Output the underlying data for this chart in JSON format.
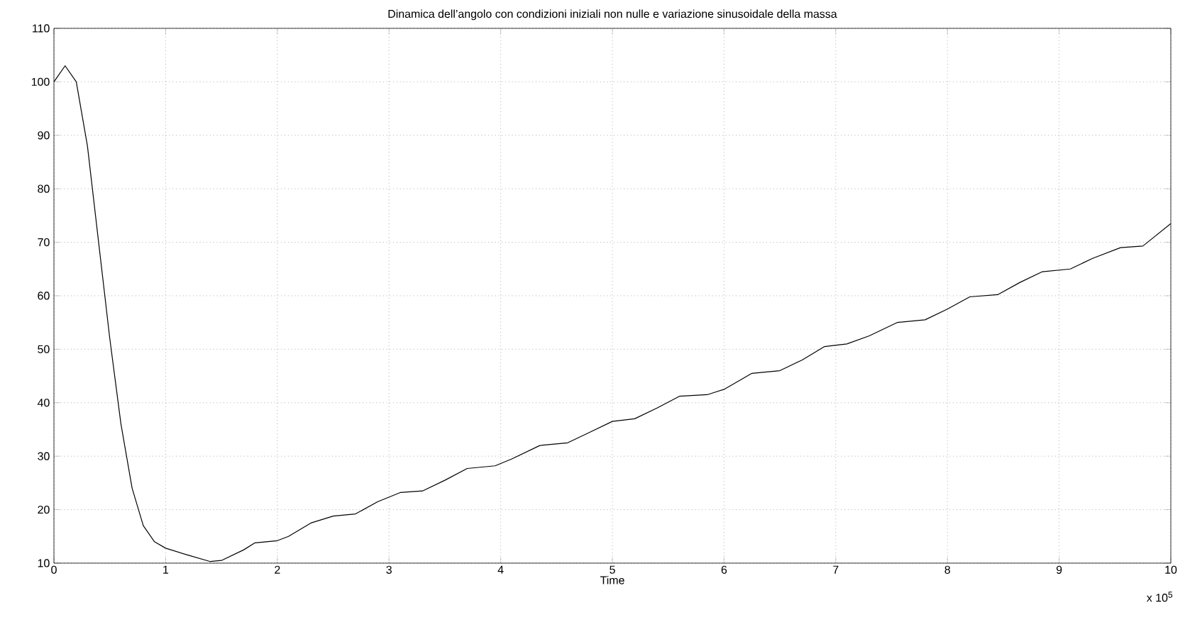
{
  "chart_data": {
    "type": "line",
    "title": "Dinamica dell’angolo con condizioni iniziali non nulle e variazione sinusoidale della massa",
    "xlabel": "Time",
    "annotations": [
      "x 10$^{5}$"
    ],
    "x": [
      0,
      0.1,
      0.2,
      0.3,
      0.4,
      0.5,
      0.6,
      0.7,
      0.8,
      0.9,
      1.0,
      1.2,
      1.4,
      1.5,
      1.7,
      1.8,
      2.0,
      2.1,
      2.3,
      2.5,
      2.7,
      2.9,
      3.1,
      3.3,
      3.5,
      3.7,
      3.95,
      4.1,
      4.35,
      4.6,
      4.8,
      5.0,
      5.2,
      5.4,
      5.6,
      5.85,
      6.0,
      6.25,
      6.5,
      6.7,
      6.9,
      7.1,
      7.3,
      7.55,
      7.8,
      8.0,
      8.2,
      8.45,
      8.65,
      8.85,
      9.1,
      9.3,
      9.55,
      9.75,
      10
    ],
    "series": [
      {
        "color": "#000000",
        "values": [
          100,
          103,
          100,
          88,
          70,
          52,
          36,
          24,
          17,
          14,
          12.8,
          11.5,
          10.3,
          10.5,
          12.5,
          13.8,
          14.2,
          15,
          17.5,
          18.8,
          19.2,
          21.5,
          23.2,
          23.5,
          25.5,
          27.7,
          28.2,
          29.5,
          32,
          32.5,
          34.5,
          36.5,
          37,
          39,
          41.2,
          41.5,
          42.5,
          45.5,
          46,
          48,
          50.5,
          51,
          52.5,
          55,
          55.5,
          57.5,
          59.8,
          60.2,
          62.5,
          64.5,
          65,
          67,
          69,
          69.3,
          73.5
        ]
      }
    ],
    "xlim": [
      0,
      10
    ],
    "ylim": [
      10,
      110
    ],
    "xticks": [
      0,
      1,
      2,
      3,
      4,
      5,
      6,
      7,
      8,
      9,
      10
    ],
    "yticks": [
      10,
      20,
      30,
      40,
      50,
      60,
      70,
      80,
      90,
      100,
      110
    ],
    "grid": true,
    "marker": "none",
    "line_style": "solid"
  }
}
